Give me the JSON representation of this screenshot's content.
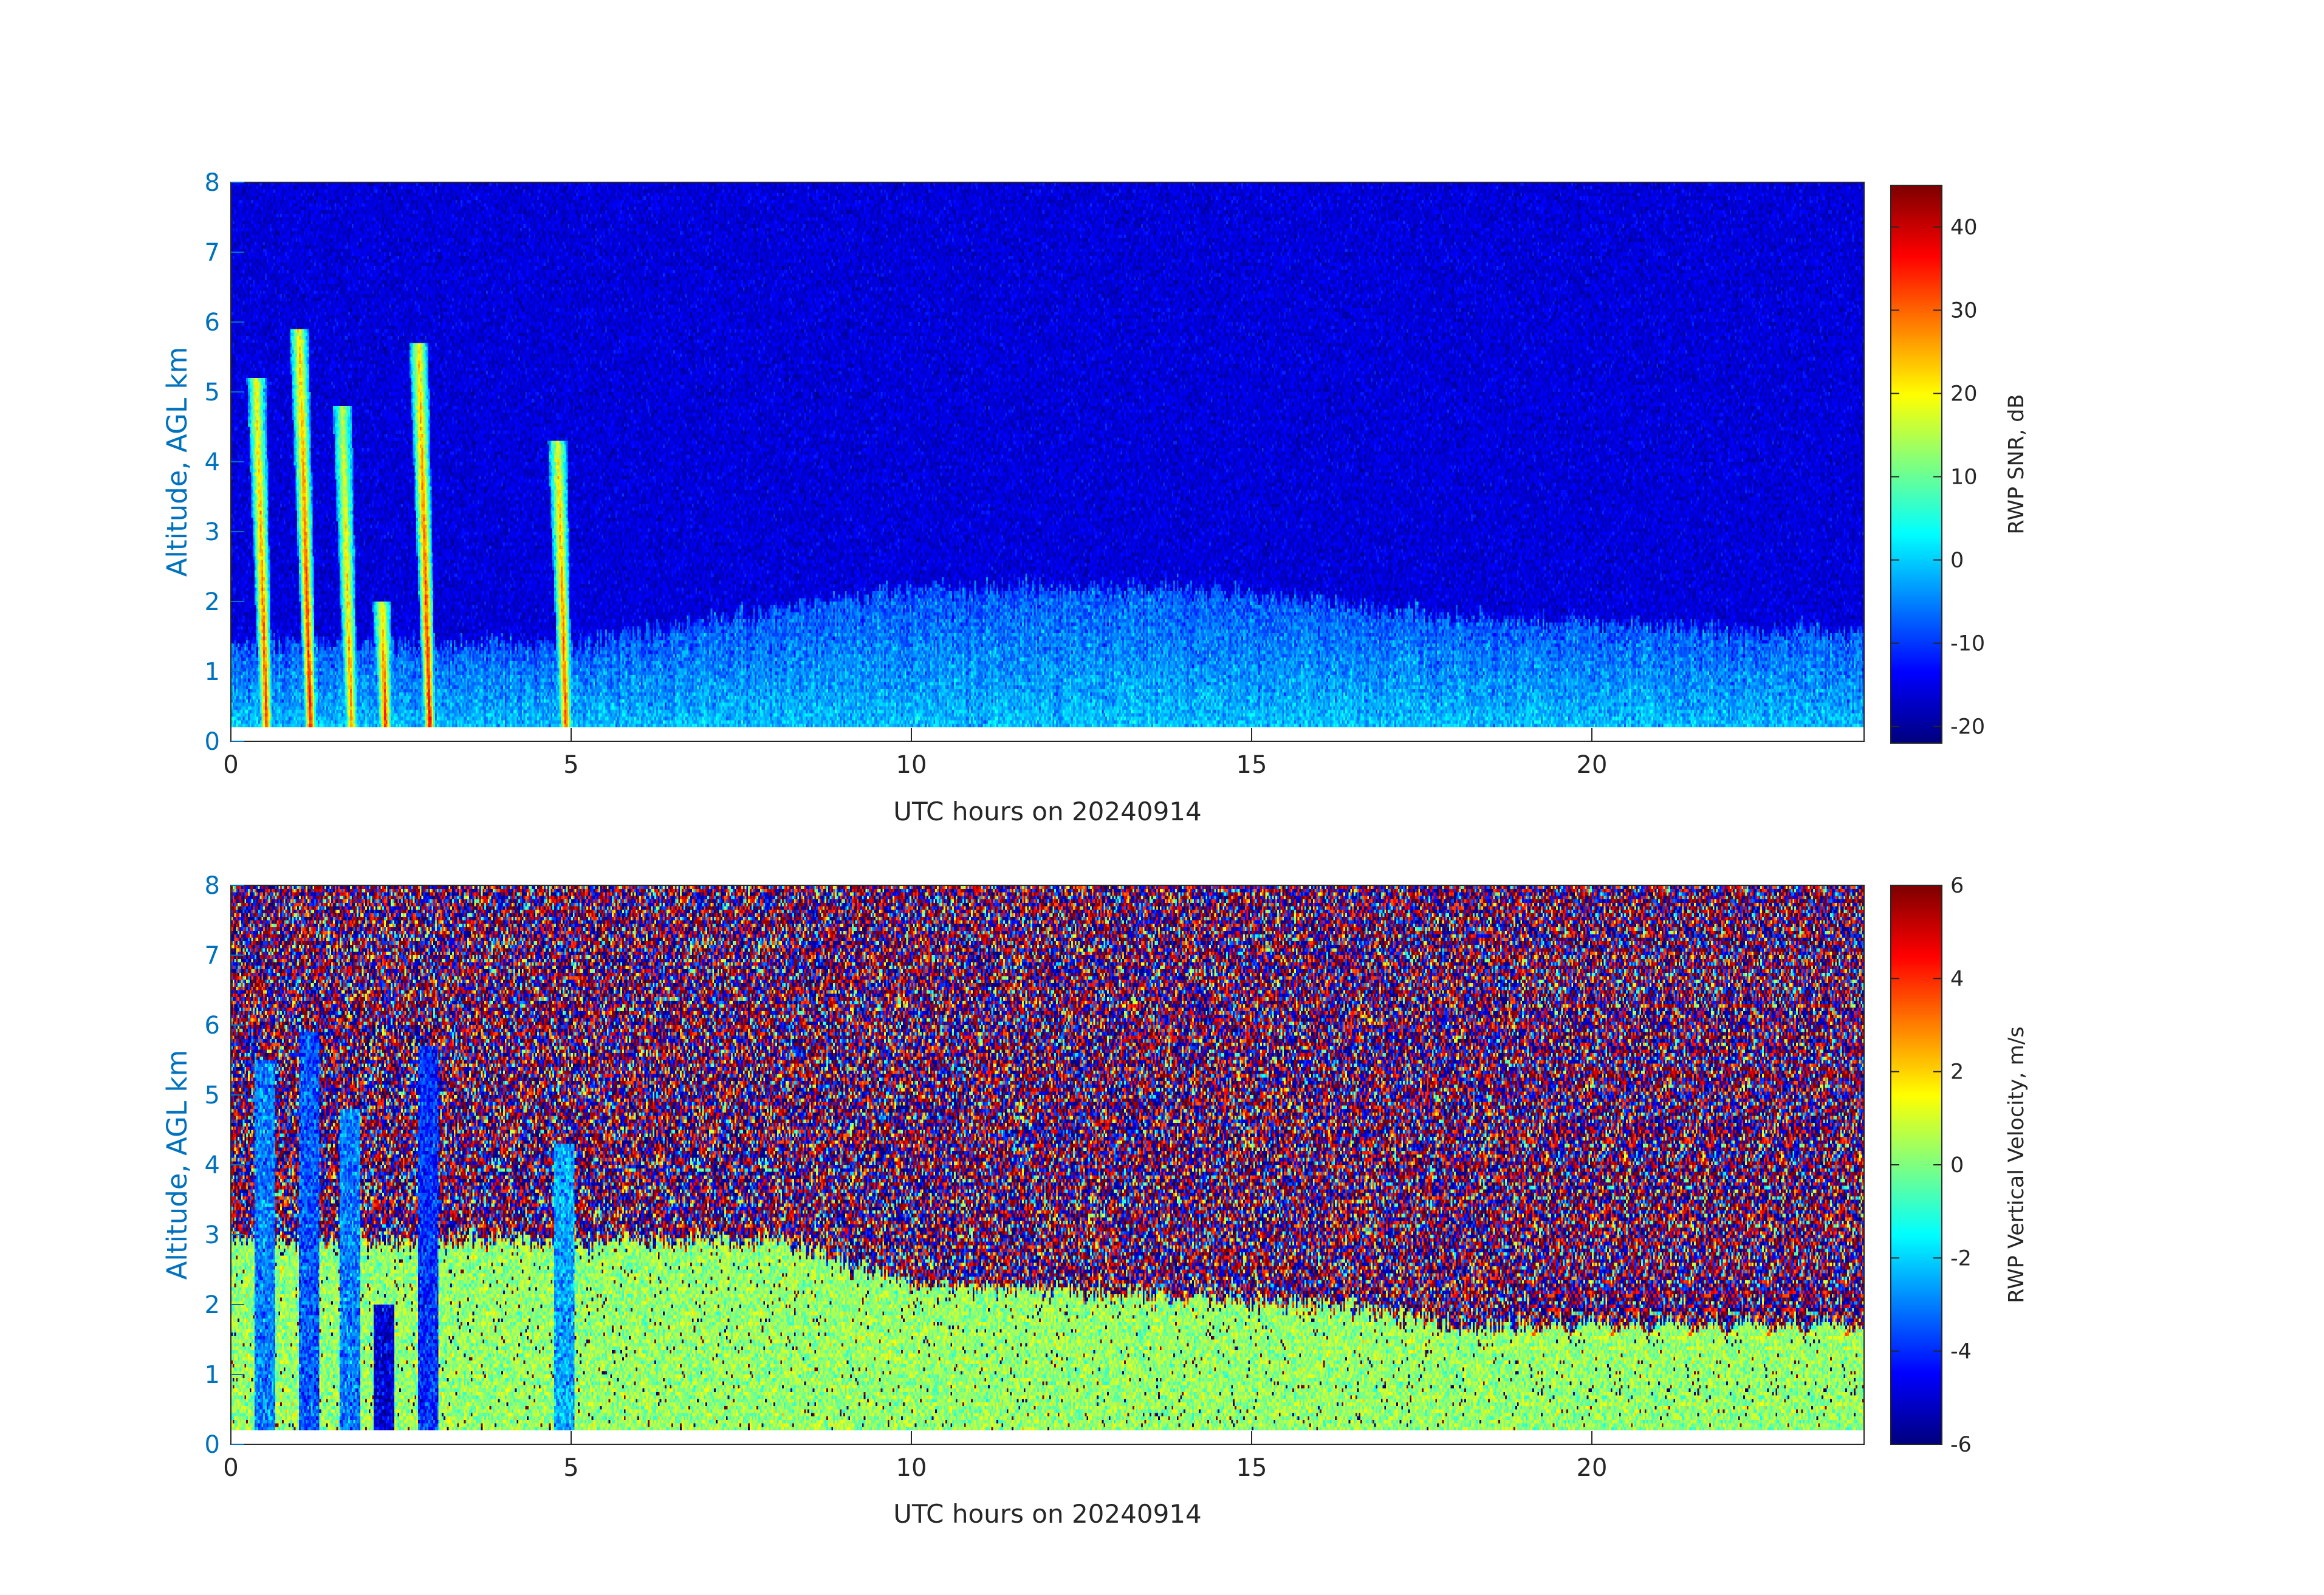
{
  "chart_data": [
    {
      "type": "heatmap",
      "xlabel": "UTC hours on 20240914",
      "ylabel": "Altitude, AGL km",
      "xlim": [
        0,
        24
      ],
      "ylim": [
        0,
        8
      ],
      "xticks": [
        0,
        5,
        10,
        15,
        20
      ],
      "yticks": [
        0,
        1,
        2,
        3,
        4,
        5,
        6,
        7,
        8
      ],
      "data_altitude_range_km": [
        0.2,
        8
      ],
      "colormap": "jet",
      "colorbar": {
        "label": "RWP SNR, dB",
        "range": [
          -22,
          45
        ],
        "ticks": [
          -20,
          -10,
          0,
          10,
          20,
          30,
          40
        ]
      },
      "grid": false,
      "features": {
        "background_snr_db": -16,
        "boundary_layer_top_km": [
          {
            "hour": 5,
            "km": 1.4
          },
          {
            "hour": 10,
            "km": 2.2
          },
          {
            "hour": 14,
            "km": 2.2
          },
          {
            "hour": 18,
            "km": 1.8
          },
          {
            "hour": 22.5,
            "km": 1.6
          },
          {
            "hour": 24,
            "km": 1.6
          }
        ],
        "precipitation_columns": [
          {
            "hour": 0.5,
            "top_km": 5.2,
            "peak_snr_db": 36
          },
          {
            "hour": 1.15,
            "top_km": 5.9,
            "peak_snr_db": 40
          },
          {
            "hour": 1.75,
            "top_km": 4.8,
            "peak_snr_db": 30
          },
          {
            "hour": 2.25,
            "top_km": 2.0,
            "peak_snr_db": 38
          },
          {
            "hour": 2.9,
            "top_km": 5.7,
            "peak_snr_db": 40
          },
          {
            "hour": 4.9,
            "top_km": 4.3,
            "peak_snr_db": 36
          }
        ]
      }
    },
    {
      "type": "heatmap",
      "xlabel": "UTC hours on 20240914",
      "ylabel": "Altitude, AGL km",
      "xlim": [
        0,
        24
      ],
      "ylim": [
        0,
        8
      ],
      "xticks": [
        0,
        5,
        10,
        15,
        20
      ],
      "yticks": [
        0,
        1,
        2,
        3,
        4,
        5,
        6,
        7,
        8
      ],
      "data_altitude_range_km": [
        0.2,
        8
      ],
      "colormap": "jet",
      "colorbar": {
        "label": "RWP Vertical Velocity, m/s",
        "range": [
          -6,
          6
        ],
        "ticks": [
          -6,
          -4,
          -2,
          0,
          2,
          4,
          6
        ]
      },
      "grid": false,
      "features": {
        "above_boundary_layer": "noise alternating between -6 and 6 m/s",
        "boundary_layer_velocity_ms": 0.3,
        "boundary_layer_top_km": [
          {
            "hour": 3,
            "km": 2.9
          },
          {
            "hour": 8,
            "km": 2.9
          },
          {
            "hour": 10,
            "km": 2.3
          },
          {
            "hour": 16,
            "km": 2.0
          },
          {
            "hour": 18,
            "km": 1.7
          },
          {
            "hour": 24,
            "km": 1.7
          }
        ],
        "fall_streaks": [
          {
            "hour": 0.5,
            "top_km": 5.5,
            "velocity_ms": -3
          },
          {
            "hour": 1.15,
            "top_km": 5.9,
            "velocity_ms": -3.5
          },
          {
            "hour": 1.75,
            "top_km": 4.8,
            "velocity_ms": -3
          },
          {
            "hour": 2.25,
            "top_km": 2.0,
            "velocity_ms": -5
          },
          {
            "hour": 2.9,
            "top_km": 5.7,
            "velocity_ms": -4
          },
          {
            "hour": 4.9,
            "top_km": 4.3,
            "velocity_ms": -2.5
          }
        ]
      }
    }
  ]
}
